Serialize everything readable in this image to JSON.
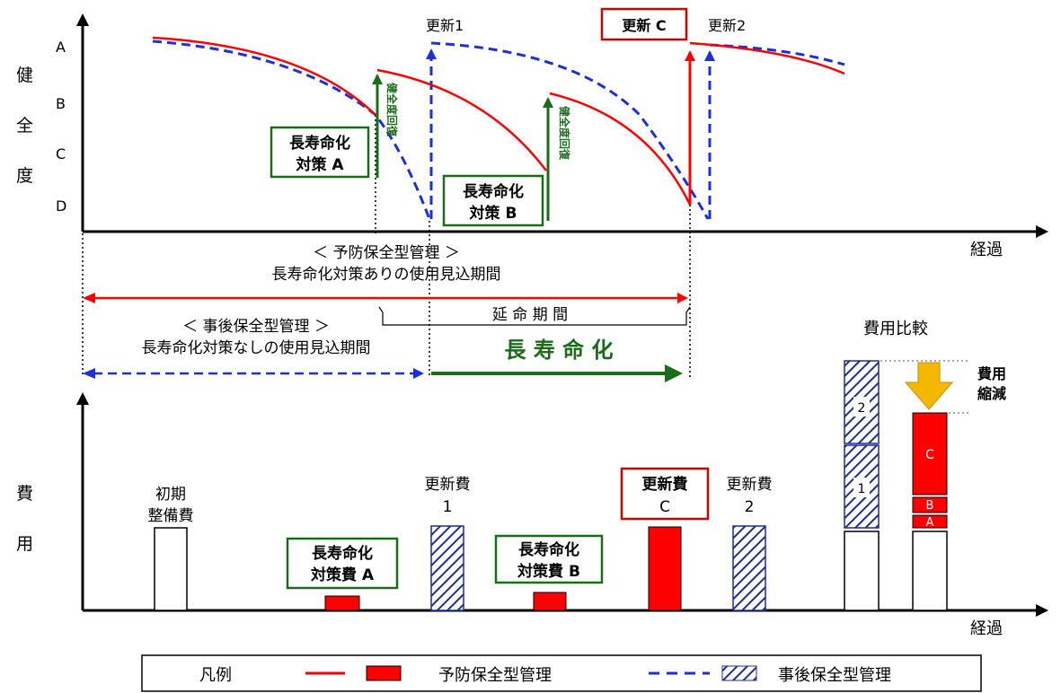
{
  "colors": {
    "preventive": "#ff0000",
    "reactive": "#1f2fd6",
    "extension": "#1a6b1a",
    "arrow_fill": "#f5b800"
  },
  "health_chart": {
    "y_axis_title": [
      "健",
      "全",
      "度"
    ],
    "y_levels": [
      "A",
      "B",
      "C",
      "D"
    ],
    "x_axis_label": "経過",
    "label_renewal_1": "更新1",
    "label_renewal_c": "更新 C",
    "label_renewal_2": "更新2",
    "measure_a": [
      "長寿命化",
      "対策 A"
    ],
    "measure_b": [
      "長寿命化",
      "対策 B"
    ],
    "recovery_a": "健全度回復",
    "recovery_b": "健全度回復"
  },
  "periods": {
    "preventive_title": "＜ 予防保全型管理 ＞",
    "preventive_desc": "長寿命化対策ありの使用見込期間",
    "reactive_title": "＜ 事後保全型管理 ＞",
    "reactive_desc": "長寿命化対策なしの使用見込期間",
    "extension_label": "延 命 期 間",
    "longevity_label": "長 寿 命 化"
  },
  "cost_chart": {
    "y_axis_title": [
      "費",
      "用"
    ],
    "x_axis_label": "経過",
    "initial_cost": [
      "初期",
      "整備費"
    ],
    "renewal_cost_1": [
      "更新費",
      "1"
    ],
    "renewal_cost_c": [
      "更新費",
      "C"
    ],
    "renewal_cost_2": [
      "更新費",
      "2"
    ],
    "measure_cost_a": [
      "長寿命化",
      "対策費 A"
    ],
    "measure_cost_b": [
      "長寿命化",
      "対策費 B"
    ],
    "comparison_title": "費用比較",
    "reduction_label": [
      "費用",
      "縮減"
    ],
    "stack_reactive": [
      "1",
      "2"
    ],
    "stack_preventive": [
      "A",
      "B",
      "C"
    ]
  },
  "legend": {
    "title": "凡例",
    "preventive": "予防保全型管理",
    "reactive": "事後保全型管理"
  }
}
